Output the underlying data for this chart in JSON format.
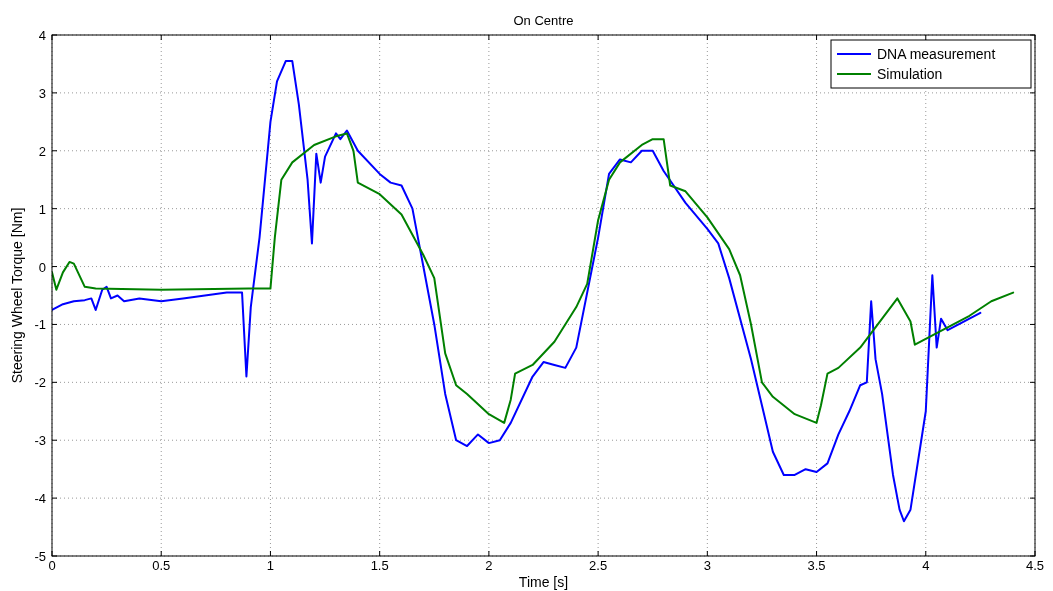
{
  "chart_data": {
    "type": "line",
    "title": "On Centre",
    "xlabel": "Time [s]",
    "ylabel": "Steering Wheel Torque [Nm]",
    "xlim": [
      0,
      4.5
    ],
    "xticks": [
      0,
      0.5,
      1,
      1.5,
      2,
      2.5,
      3,
      3.5,
      4,
      4.5
    ],
    "ylim": [
      -5,
      4
    ],
    "yticks": [
      -5,
      -4,
      -3,
      -2,
      -1,
      0,
      1,
      2,
      3,
      4
    ],
    "grid": true,
    "legend": "top right",
    "series": [
      {
        "name": "DNA measurement",
        "color": "#0000ff",
        "x": [
          0,
          0.05,
          0.1,
          0.15,
          0.18,
          0.2,
          0.23,
          0.25,
          0.27,
          0.3,
          0.33,
          0.4,
          0.5,
          0.6,
          0.7,
          0.8,
          0.87,
          0.89,
          0.91,
          0.95,
          1.0,
          1.03,
          1.07,
          1.1,
          1.13,
          1.17,
          1.19,
          1.21,
          1.23,
          1.25,
          1.3,
          1.32,
          1.35,
          1.4,
          1.5,
          1.55,
          1.6,
          1.65,
          1.7,
          1.75,
          1.8,
          1.85,
          1.9,
          1.95,
          2.0,
          2.05,
          2.1,
          2.2,
          2.25,
          2.3,
          2.35,
          2.4,
          2.5,
          2.55,
          2.6,
          2.65,
          2.7,
          2.75,
          2.8,
          2.9,
          3.0,
          3.05,
          3.1,
          3.2,
          3.3,
          3.35,
          3.4,
          3.45,
          3.5,
          3.55,
          3.6,
          3.65,
          3.7,
          3.73,
          3.75,
          3.77,
          3.8,
          3.85,
          3.88,
          3.9,
          3.93,
          4.0,
          4.03,
          4.05,
          4.07,
          4.1,
          4.15,
          4.2,
          4.25
        ],
        "values": [
          -0.75,
          -0.65,
          -0.6,
          -0.58,
          -0.55,
          -0.75,
          -0.4,
          -0.35,
          -0.55,
          -0.5,
          -0.6,
          -0.55,
          -0.6,
          -0.55,
          -0.5,
          -0.45,
          -0.45,
          -1.9,
          -0.7,
          0.5,
          2.5,
          3.2,
          3.55,
          3.55,
          2.8,
          1.5,
          0.4,
          1.95,
          1.45,
          1.9,
          2.3,
          2.2,
          2.35,
          2.0,
          1.6,
          1.45,
          1.4,
          1.0,
          0.0,
          -1.0,
          -2.2,
          -3.0,
          -3.1,
          -2.9,
          -3.05,
          -3.0,
          -2.7,
          -1.9,
          -1.65,
          -1.7,
          -1.75,
          -1.4,
          0.5,
          1.6,
          1.85,
          1.8,
          2.0,
          2.0,
          1.65,
          1.1,
          0.65,
          0.4,
          -0.2,
          -1.6,
          -3.2,
          -3.6,
          -3.6,
          -3.5,
          -3.55,
          -3.4,
          -2.9,
          -2.5,
          -2.05,
          -2.0,
          -0.6,
          -1.6,
          -2.2,
          -3.6,
          -4.2,
          -4.4,
          -4.2,
          -2.5,
          -0.15,
          -1.4,
          -0.9,
          -1.1,
          -1.0,
          -0.9,
          -0.8
        ]
      },
      {
        "name": "Simulation",
        "color": "#008000",
        "x": [
          0,
          0.02,
          0.05,
          0.08,
          0.1,
          0.15,
          0.2,
          0.5,
          0.9,
          1.0,
          1.02,
          1.05,
          1.1,
          1.2,
          1.3,
          1.35,
          1.38,
          1.4,
          1.5,
          1.6,
          1.7,
          1.75,
          1.8,
          1.85,
          1.9,
          2.0,
          2.07,
          2.1,
          2.12,
          2.2,
          2.3,
          2.4,
          2.45,
          2.5,
          2.55,
          2.6,
          2.7,
          2.75,
          2.8,
          2.83,
          2.9,
          3.0,
          3.1,
          3.15,
          3.2,
          3.25,
          3.3,
          3.4,
          3.5,
          3.52,
          3.55,
          3.6,
          3.7,
          3.8,
          3.87,
          3.9,
          3.93,
          3.95,
          4.0,
          4.1,
          4.2,
          4.3,
          4.4
        ],
        "values": [
          -0.1,
          -0.4,
          -0.1,
          0.08,
          0.05,
          -0.35,
          -0.38,
          -0.4,
          -0.38,
          -0.38,
          0.5,
          1.5,
          1.8,
          2.1,
          2.25,
          2.3,
          2.0,
          1.45,
          1.25,
          0.9,
          0.2,
          -0.2,
          -1.5,
          -2.05,
          -2.2,
          -2.55,
          -2.7,
          -2.3,
          -1.85,
          -1.7,
          -1.3,
          -0.7,
          -0.3,
          0.8,
          1.5,
          1.8,
          2.1,
          2.2,
          2.2,
          1.4,
          1.3,
          0.85,
          0.3,
          -0.15,
          -1.0,
          -2.0,
          -2.25,
          -2.55,
          -2.7,
          -2.4,
          -1.85,
          -1.75,
          -1.4,
          -0.9,
          -0.55,
          -0.75,
          -0.95,
          -1.35,
          -1.25,
          -1.05,
          -0.85,
          -0.6,
          -0.45
        ]
      }
    ]
  }
}
